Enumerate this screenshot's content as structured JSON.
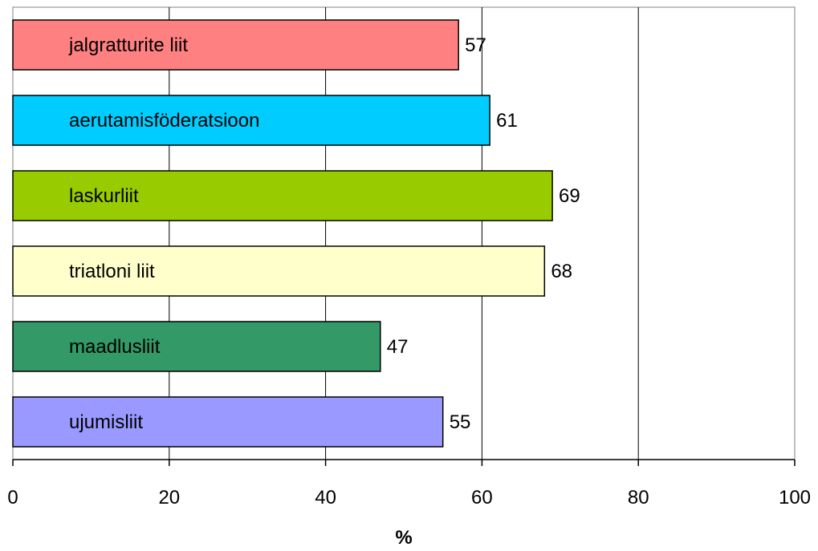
{
  "chart_data": {
    "type": "bar",
    "orientation": "horizontal",
    "categories": [
      "jalgratturite liit",
      "aerutamisföderatsioon",
      "laskurliit",
      "triatloni liit",
      "maadlusliit",
      "ujumisliit"
    ],
    "values": [
      57,
      61,
      69,
      68,
      47,
      55
    ],
    "colors": [
      "#FF8080",
      "#00CCFF",
      "#99CC00",
      "#FFFFCC",
      "#339966",
      "#9999FF"
    ],
    "title": "",
    "xlabel": "%",
    "ylabel": "",
    "xlim": [
      0,
      100
    ],
    "xticks": [
      "0",
      "20",
      "40",
      "60",
      "80",
      "100"
    ],
    "grid": "vertical",
    "legend": "none",
    "labels_inside_bars": true,
    "data_labels": true
  }
}
